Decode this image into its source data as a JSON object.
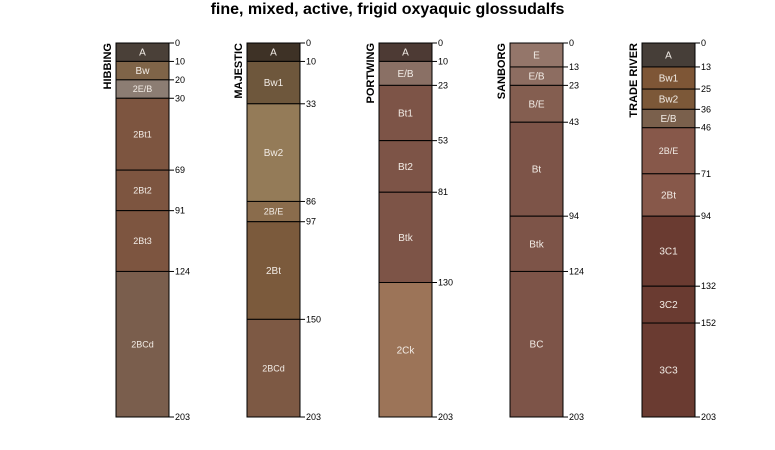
{
  "title": "fine, mixed, active, frigid oxyaquic glossudalfs",
  "depth_range": [
    0,
    203
  ],
  "profiles": [
    {
      "name": "HIBBING",
      "horizons": [
        {
          "name": "A",
          "top": 0,
          "bottom": 10,
          "color": "#4a4038"
        },
        {
          "name": "Bw",
          "top": 10,
          "bottom": 20,
          "color": "#7f6448"
        },
        {
          "name": "2E/B",
          "top": 20,
          "bottom": 30,
          "color": "#8c7d73"
        },
        {
          "name": "2Bt1",
          "top": 30,
          "bottom": 69,
          "color": "#7d5540"
        },
        {
          "name": "2Bt2",
          "top": 69,
          "bottom": 91,
          "color": "#7d5540"
        },
        {
          "name": "2Bt3",
          "top": 91,
          "bottom": 124,
          "color": "#7d5540"
        },
        {
          "name": "2BCd",
          "top": 124,
          "bottom": 203,
          "color": "#7a5e4d"
        }
      ]
    },
    {
      "name": "MAJESTIC",
      "horizons": [
        {
          "name": "A",
          "top": 0,
          "bottom": 10,
          "color": "#3e3226"
        },
        {
          "name": "Bw1",
          "top": 10,
          "bottom": 33,
          "color": "#6e573c"
        },
        {
          "name": "Bw2",
          "top": 33,
          "bottom": 86,
          "color": "#947b58"
        },
        {
          "name": "2B/E",
          "top": 86,
          "bottom": 97,
          "color": "#8a6c4c"
        },
        {
          "name": "2Bt",
          "top": 97,
          "bottom": 150,
          "color": "#7b5a3c"
        },
        {
          "name": "2BCd",
          "top": 150,
          "bottom": 203,
          "color": "#7d5944"
        }
      ]
    },
    {
      "name": "PORTWING",
      "horizons": [
        {
          "name": "A",
          "top": 0,
          "bottom": 10,
          "color": "#4d3a34"
        },
        {
          "name": "E/B",
          "top": 10,
          "bottom": 23,
          "color": "#8a7065"
        },
        {
          "name": "Bt1",
          "top": 23,
          "bottom": 53,
          "color": "#7d5447"
        },
        {
          "name": "Bt2",
          "top": 53,
          "bottom": 81,
          "color": "#7d5447"
        },
        {
          "name": "Btk",
          "top": 81,
          "bottom": 130,
          "color": "#7d5447"
        },
        {
          "name": "2Ck",
          "top": 130,
          "bottom": 203,
          "color": "#9c7458"
        }
      ]
    },
    {
      "name": "SANBORG",
      "horizons": [
        {
          "name": "E",
          "top": 0,
          "bottom": 13,
          "color": "#94766a"
        },
        {
          "name": "E/B",
          "top": 13,
          "bottom": 23,
          "color": "#8d6d61"
        },
        {
          "name": "B/E",
          "top": 23,
          "bottom": 43,
          "color": "#845e50"
        },
        {
          "name": "Bt",
          "top": 43,
          "bottom": 94,
          "color": "#7d5448"
        },
        {
          "name": "Btk",
          "top": 94,
          "bottom": 124,
          "color": "#7d5448"
        },
        {
          "name": "BC",
          "top": 124,
          "bottom": 203,
          "color": "#7d5448"
        }
      ]
    },
    {
      "name": "TRADE RIVER",
      "horizons": [
        {
          "name": "A",
          "top": 0,
          "bottom": 13,
          "color": "#463e38"
        },
        {
          "name": "Bw1",
          "top": 13,
          "bottom": 25,
          "color": "#7e5636"
        },
        {
          "name": "Bw2",
          "top": 25,
          "bottom": 36,
          "color": "#7c5838"
        },
        {
          "name": "E/B",
          "top": 36,
          "bottom": 46,
          "color": "#7a604c"
        },
        {
          "name": "2B/E",
          "top": 46,
          "bottom": 71,
          "color": "#87584a"
        },
        {
          "name": "2Bt",
          "top": 71,
          "bottom": 94,
          "color": "#87584a"
        },
        {
          "name": "3C1",
          "top": 94,
          "bottom": 132,
          "color": "#6a3b31"
        },
        {
          "name": "3C2",
          "top": 132,
          "bottom": 152,
          "color": "#6a3b31"
        },
        {
          "name": "3C3",
          "top": 152,
          "bottom": 203,
          "color": "#6a3b31"
        }
      ]
    }
  ]
}
